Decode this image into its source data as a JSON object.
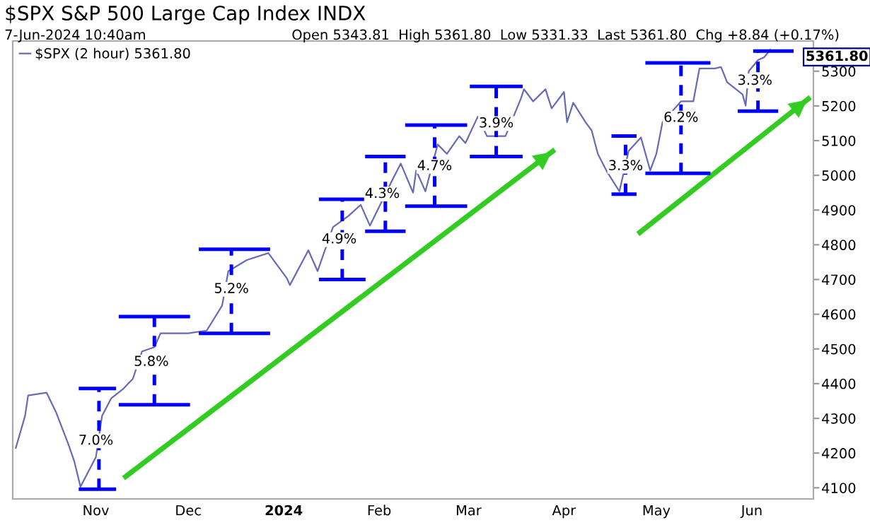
{
  "chart_data": {
    "type": "line",
    "title": "$SPX S&P 500 Large Cap Index INDX",
    "subtitle": "7-Jun-2024 10:40am",
    "legend": "top left",
    "grid": false,
    "marker": "none",
    "line_style": "solid",
    "xlim": [
      "2023-10-05",
      "2024-06-21"
    ],
    "ylim": [
      4068,
      5387
    ],
    "xticks": [
      {
        "value": "2023-11-01",
        "label": "Nov"
      },
      {
        "value": "2023-12-01",
        "label": "Dec"
      },
      {
        "value": "2024-01-01",
        "label": "2024"
      },
      {
        "value": "2024-02-01",
        "label": "Feb"
      },
      {
        "value": "2024-03-01",
        "label": "Mar"
      },
      {
        "value": "2024-04-01",
        "label": "Apr"
      },
      {
        "value": "2024-05-01",
        "label": "May"
      },
      {
        "value": "2024-06-01",
        "label": "Jun"
      }
    ],
    "yticks": [
      4100,
      4200,
      4300,
      4400,
      4500,
      4600,
      4700,
      4800,
      4900,
      5000,
      5100,
      5200,
      5300
    ],
    "series": [
      {
        "name": "$SPX (2 hour) 5361.80",
        "color": "#6a6ab4",
        "x": [
          "2023-10-06",
          "2023-10-09",
          "2023-10-10",
          "2023-10-16",
          "2023-10-19",
          "2023-10-23",
          "2023-10-25",
          "2023-10-27",
          "2023-11-01",
          "2023-11-03",
          "2023-11-06",
          "2023-11-10",
          "2023-11-13",
          "2023-11-16",
          "2023-11-20",
          "2023-11-22",
          "2023-12-01",
          "2023-12-07",
          "2023-12-12",
          "2023-12-14",
          "2023-12-20",
          "2023-12-27",
          "2024-01-02",
          "2024-01-03",
          "2024-01-09",
          "2024-01-12",
          "2024-01-17",
          "2024-01-22",
          "2024-01-26",
          "2024-01-29",
          "2024-02-05",
          "2024-02-08",
          "2024-02-12",
          "2024-02-13",
          "2024-02-16",
          "2024-02-20",
          "2024-02-23",
          "2024-02-27",
          "2024-02-29",
          "2024-03-04",
          "2024-03-07",
          "2024-03-13",
          "2024-03-18",
          "2024-03-19",
          "2024-03-22",
          "2024-03-26",
          "2024-03-28",
          "2024-04-01",
          "2024-04-02",
          "2024-04-04",
          "2024-04-08",
          "2024-04-10",
          "2024-04-12",
          "2024-04-15",
          "2024-04-19",
          "2024-04-22",
          "2024-04-26",
          "2024-04-29",
          "2024-05-01",
          "2024-05-03",
          "2024-05-09",
          "2024-05-13",
          "2024-05-15",
          "2024-05-20",
          "2024-05-22",
          "2024-05-24",
          "2024-05-29",
          "2024-05-30",
          "2024-05-31",
          "2024-06-03",
          "2024-06-05",
          "2024-06-07"
        ],
        "values": [
          4215,
          4307,
          4366,
          4374,
          4319,
          4227,
          4176,
          4103,
          4188,
          4307,
          4358,
          4386,
          4414,
          4493,
          4505,
          4545,
          4545,
          4553,
          4625,
          4724,
          4756,
          4776,
          4704,
          4684,
          4784,
          4724,
          4851,
          4883,
          4915,
          4855,
          4982,
          5034,
          4950,
          5014,
          4954,
          5089,
          5062,
          5113,
          5093,
          5169,
          5113,
          5113,
          5221,
          5248,
          5213,
          5248,
          5193,
          5240,
          5153,
          5209,
          5153,
          5129,
          5062,
          5010,
          4954,
          5070,
          5109,
          5014,
          5062,
          5153,
          5213,
          5213,
          5308,
          5308,
          5312,
          5268,
          5233,
          5201,
          5300,
          5332,
          5340,
          5361.8
        ]
      },
      {
        "type": "line",
        "color": "#33cc22",
        "x": [
          "2023-11-10",
          "2024-03-29"
        ],
        "values": [
          4128,
          5074
        ]
      },
      {
        "type": "line",
        "color": "#33cc22",
        "x": [
          "2024-04-25",
          "2024-06-20"
        ],
        "values": [
          4831,
          5225
        ]
      },
      {
        "type": "line",
        "color": "#0000ff",
        "x": [
          "2023-10-27",
          "2023-11-07"
        ],
        "values": [
          4386,
          4386
        ]
      },
      {
        "type": "line",
        "color": "#0000ff",
        "x": [
          "2023-10-27",
          "2023-11-07"
        ],
        "values": [
          4096,
          4096
        ]
      },
      {
        "type": "line",
        "color": "#0000ff",
        "line_style": "dashed",
        "x": [
          "2023-11-02",
          "2023-11-02"
        ],
        "values": [
          4096,
          4386
        ]
      },
      {
        "type": "line",
        "color": "#0000ff",
        "x": [
          "2023-11-09",
          "2023-12-01"
        ],
        "values": [
          4593,
          4593
        ]
      },
      {
        "type": "line",
        "color": "#0000ff",
        "x": [
          "2023-11-09",
          "2023-12-01"
        ],
        "values": [
          4339,
          4339
        ]
      },
      {
        "type": "line",
        "color": "#0000ff",
        "line_style": "dashed",
        "x": [
          "2023-11-20",
          "2023-11-20"
        ],
        "values": [
          4339,
          4593
        ]
      },
      {
        "type": "line",
        "color": "#0000ff",
        "x": [
          "2023-12-05",
          "2023-12-27"
        ],
        "values": [
          4787,
          4787
        ]
      },
      {
        "type": "line",
        "color": "#0000ff",
        "x": [
          "2023-12-05",
          "2023-12-27"
        ],
        "values": [
          4545,
          4545
        ]
      },
      {
        "type": "line",
        "color": "#0000ff",
        "line_style": "dashed",
        "x": [
          "2023-12-15",
          "2023-12-15"
        ],
        "values": [
          4545,
          4787
        ]
      },
      {
        "type": "line",
        "color": "#0000ff",
        "x": [
          "2024-01-13",
          "2024-01-27"
        ],
        "values": [
          4931,
          4931
        ]
      },
      {
        "type": "line",
        "color": "#0000ff",
        "x": [
          "2024-01-13",
          "2024-01-27"
        ],
        "values": [
          4700,
          4700
        ]
      },
      {
        "type": "line",
        "color": "#0000ff",
        "line_style": "dashed",
        "x": [
          "2024-01-20",
          "2024-01-20"
        ],
        "values": [
          4700,
          4931
        ]
      },
      {
        "type": "line",
        "color": "#0000ff",
        "x": [
          "2024-01-28",
          "2024-02-09"
        ],
        "values": [
          5054,
          5054
        ]
      },
      {
        "type": "line",
        "color": "#0000ff",
        "x": [
          "2024-01-28",
          "2024-02-09"
        ],
        "values": [
          4839,
          4839
        ]
      },
      {
        "type": "line",
        "color": "#0000ff",
        "line_style": "dashed",
        "x": [
          "2024-02-03",
          "2024-02-03"
        ],
        "values": [
          4839,
          5054
        ]
      },
      {
        "type": "line",
        "color": "#0000ff",
        "x": [
          "2024-02-10",
          "2024-02-29"
        ],
        "values": [
          5145,
          5145
        ]
      },
      {
        "type": "line",
        "color": "#0000ff",
        "x": [
          "2024-02-10",
          "2024-02-29"
        ],
        "values": [
          4911,
          4911
        ]
      },
      {
        "type": "line",
        "color": "#0000ff",
        "line_style": "dashed",
        "x": [
          "2024-02-19",
          "2024-02-19"
        ],
        "values": [
          4911,
          5145
        ]
      },
      {
        "type": "line",
        "color": "#0000ff",
        "x": [
          "2024-03-02",
          "2024-03-18"
        ],
        "values": [
          5256,
          5256
        ]
      },
      {
        "type": "line",
        "color": "#0000ff",
        "x": [
          "2024-03-02",
          "2024-03-18"
        ],
        "values": [
          5054,
          5054
        ]
      },
      {
        "type": "line",
        "color": "#0000ff",
        "line_style": "dashed",
        "x": [
          "2024-03-10",
          "2024-03-10"
        ],
        "values": [
          5054,
          5256
        ]
      },
      {
        "type": "line",
        "color": "#0000ff",
        "x": [
          "2024-04-17",
          "2024-04-24"
        ],
        "values": [
          5113,
          5113
        ]
      },
      {
        "type": "line",
        "color": "#0000ff",
        "x": [
          "2024-04-17",
          "2024-04-24"
        ],
        "values": [
          4946,
          4946
        ]
      },
      {
        "type": "line",
        "color": "#0000ff",
        "line_style": "dashed",
        "x": [
          "2024-04-21",
          "2024-04-21"
        ],
        "values": [
          4946,
          5113
        ]
      },
      {
        "type": "line",
        "color": "#0000ff",
        "x": [
          "2024-04-28",
          "2024-05-18"
        ],
        "values": [
          5324,
          5324
        ]
      },
      {
        "type": "line",
        "color": "#0000ff",
        "x": [
          "2024-04-28",
          "2024-05-18"
        ],
        "values": [
          5006,
          5006
        ]
      },
      {
        "type": "line",
        "color": "#0000ff",
        "line_style": "dashed",
        "x": [
          "2024-05-09",
          "2024-05-09"
        ],
        "values": [
          5006,
          5324
        ]
      },
      {
        "type": "line",
        "color": "#0000ff",
        "x": [
          "2024-06-02",
          "2024-06-14"
        ],
        "values": [
          5358,
          5358
        ]
      },
      {
        "type": "line",
        "color": "#0000ff",
        "x": [
          "2024-05-28",
          "2024-06-09"
        ],
        "values": [
          5185,
          5185
        ]
      },
      {
        "type": "line",
        "color": "#0000ff",
        "line_style": "dashed",
        "x": [
          "2024-06-03",
          "2024-06-03"
        ],
        "values": [
          5185,
          5358
        ]
      }
    ],
    "annotations": [
      "Open 5343.81  High 5361.80  Low 5331.33  Last 5361.80  Chg +8.84 (+0.17%)",
      "5361.80",
      {
        "text": "7.0%",
        "x": "2023-11-01",
        "y": 4235
      },
      {
        "text": "5.8%",
        "x": "2023-11-19",
        "y": 4462
      },
      {
        "text": "5.2%",
        "x": "2023-12-15",
        "y": 4672
      },
      {
        "text": "4.9%",
        "x": "2024-01-19",
        "y": 4815
      },
      {
        "text": "4.3%",
        "x": "2024-02-02",
        "y": 4946
      },
      {
        "text": "4.7%",
        "x": "2024-02-19",
        "y": 5026
      },
      {
        "text": "3.9%",
        "x": "2024-03-10",
        "y": 5149
      },
      {
        "text": "3.3%",
        "x": "2024-04-21",
        "y": 5026
      },
      {
        "text": "6.2%",
        "x": "2024-05-09",
        "y": 5165
      },
      {
        "text": "3.3%",
        "x": "2024-06-02",
        "y": 5272
      }
    ]
  }
}
